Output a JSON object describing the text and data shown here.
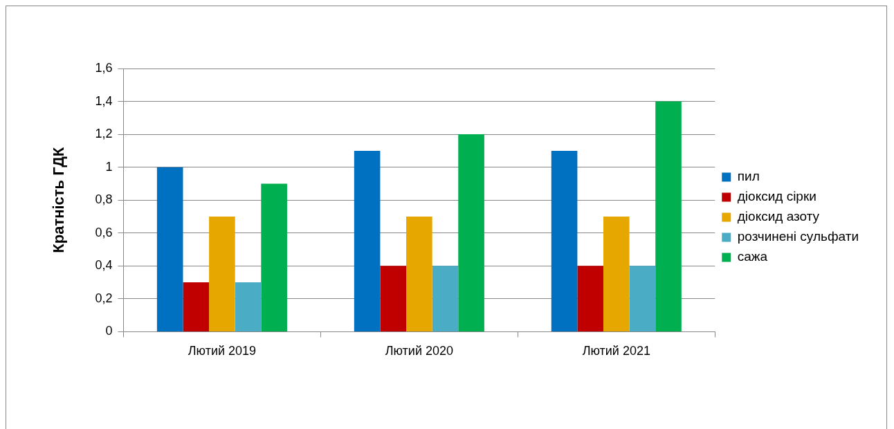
{
  "chart_data": {
    "type": "bar",
    "ylabel": "Кратність ГДК",
    "categories": [
      "Лютий 2019",
      "Лютий 2020",
      "Лютий 2021"
    ],
    "series": [
      {
        "name": "пил",
        "color": "#0070c0",
        "values": [
          1,
          1.1,
          1.1
        ]
      },
      {
        "name": "діоксид сірки",
        "color": "#c00000",
        "values": [
          0.3,
          0.4,
          0.4
        ]
      },
      {
        "name": "діоксид азоту",
        "color": "#e6a800",
        "values": [
          0.7,
          0.7,
          0.7
        ]
      },
      {
        "name": "розчинені сульфати",
        "color": "#4bacc6",
        "values": [
          0.3,
          0.4,
          0.4
        ]
      },
      {
        "name": "сажа",
        "color": "#00b050",
        "values": [
          0.9,
          1.2,
          1.4
        ]
      }
    ],
    "ylim": [
      0,
      1.6
    ],
    "yticks": [
      0,
      {
        "value": 0.2,
        "label": "0,2"
      },
      {
        "value": 0.4,
        "label": "0,4"
      },
      {
        "value": 0.6,
        "label": "0,6"
      },
      {
        "value": 0.8,
        "label": "0,8"
      },
      1,
      {
        "value": 1.2,
        "label": "1,2"
      },
      {
        "value": 1.4,
        "label": "1,4"
      },
      {
        "value": 1.6,
        "label": "1,6"
      }
    ],
    "grid": "y",
    "legend": "right"
  }
}
